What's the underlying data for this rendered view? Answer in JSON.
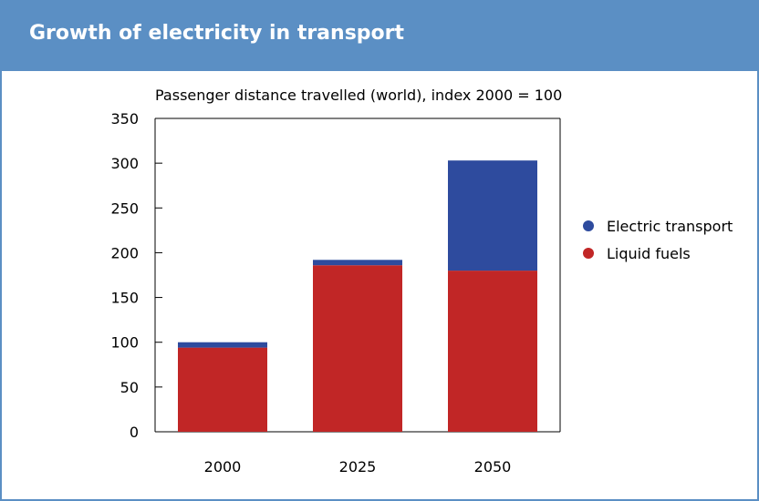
{
  "header": {
    "title": "Growth of electricity in transport"
  },
  "colors": {
    "header_bg": "#5b8fc4",
    "electric": "#2e4b9e",
    "liquid": "#c12626"
  },
  "chart_data": {
    "type": "bar",
    "stacked": true,
    "title": "Passenger distance travelled (world), index 2000 = 100",
    "categories": [
      "2000",
      "2025",
      "2050"
    ],
    "series": [
      {
        "name": "Liquid fuels",
        "color": "#c12626",
        "values": [
          94,
          186,
          180
        ]
      },
      {
        "name": "Electric transport",
        "color": "#2e4b9e",
        "values": [
          6,
          6,
          123
        ]
      }
    ],
    "ylim": [
      0,
      350
    ],
    "yticks": [
      0,
      50,
      100,
      150,
      200,
      250,
      300,
      350
    ],
    "legend_position": "right",
    "legend_order": [
      "Electric transport",
      "Liquid fuels"
    ]
  }
}
